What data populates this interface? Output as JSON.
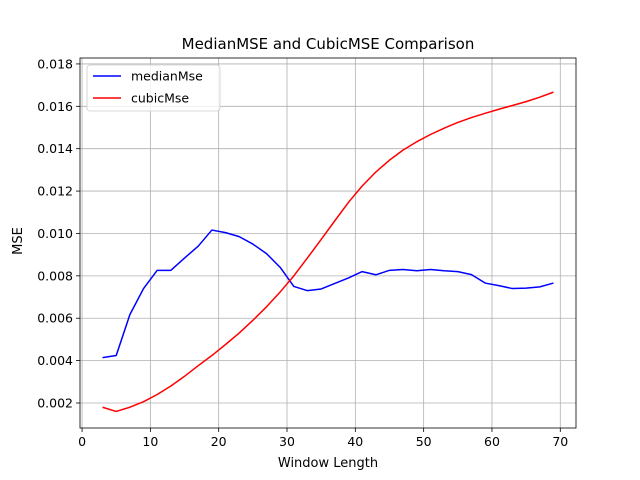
{
  "chart_data": {
    "type": "line",
    "title": "MedianMSE and CubicMSE Comparison",
    "xlabel": "Window Length",
    "ylabel": "MSE",
    "xlim": [
      -0.3,
      72.3
    ],
    "ylim": [
      0.00082,
      0.01828
    ],
    "xticks": [
      0,
      10,
      20,
      30,
      40,
      50,
      60,
      70
    ],
    "xtick_labels": [
      "0",
      "10",
      "20",
      "30",
      "40",
      "50",
      "60",
      "70"
    ],
    "yticks": [
      0.002,
      0.004,
      0.006,
      0.008,
      0.01,
      0.012,
      0.014,
      0.016,
      0.018
    ],
    "ytick_labels": [
      "0.002",
      "0.004",
      "0.006",
      "0.008",
      "0.010",
      "0.012",
      "0.014",
      "0.016",
      "0.018"
    ],
    "grid": true,
    "legend_position": "top-left",
    "x": [
      3,
      5,
      7,
      9,
      11,
      13,
      15,
      17,
      19,
      21,
      23,
      25,
      27,
      29,
      31,
      33,
      35,
      37,
      39,
      41,
      43,
      45,
      47,
      49,
      51,
      53,
      55,
      57,
      59,
      61,
      63,
      65,
      67,
      69
    ],
    "series": [
      {
        "name": "medianMse",
        "color": "#0000ff",
        "values": [
          0.00414,
          0.00424,
          0.00617,
          0.0074,
          0.00826,
          0.00826,
          0.00884,
          0.0094,
          0.01016,
          0.01004,
          0.00985,
          0.0095,
          0.00905,
          0.0084,
          0.0075,
          0.0073,
          0.00738,
          0.00764,
          0.0079,
          0.0082,
          0.00805,
          0.00826,
          0.0083,
          0.00824,
          0.0083,
          0.00824,
          0.0082,
          0.00806,
          0.00766,
          0.00754,
          0.0074,
          0.00742,
          0.00748,
          0.00766
        ]
      },
      {
        "name": "cubicMse",
        "color": "#ff0000",
        "values": [
          0.0018,
          0.0016,
          0.0018,
          0.00206,
          0.0024,
          0.0028,
          0.00326,
          0.00376,
          0.00424,
          0.00476,
          0.0053,
          0.0059,
          0.00654,
          0.00724,
          0.008,
          0.00885,
          0.00972,
          0.0106,
          0.01147,
          0.01224,
          0.0129,
          0.01346,
          0.01394,
          0.01433,
          0.01467,
          0.01497,
          0.01524,
          0.01547,
          0.01567,
          0.01586,
          0.01604,
          0.01622,
          0.01643,
          0.01667
        ]
      }
    ]
  }
}
